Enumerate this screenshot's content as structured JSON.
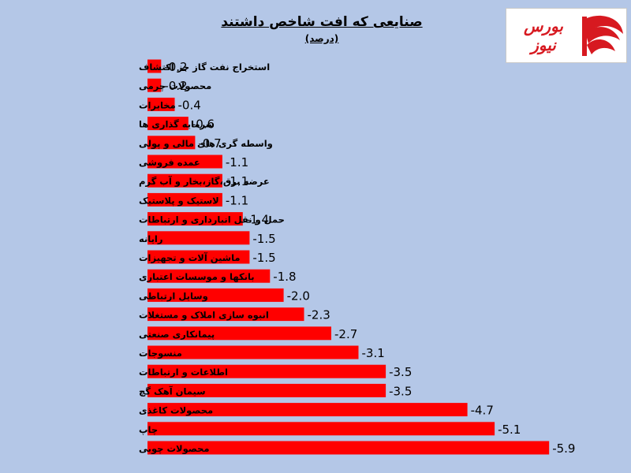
{
  "title": {
    "main": "صنایعی که افت شاخص داشتند",
    "unit": "(درصد)"
  },
  "logo": {
    "text": "بورس نیوز",
    "color": "#d71920"
  },
  "colors": {
    "bar": "#ff0000",
    "background": "#b4c7e7"
  },
  "chart_data": {
    "type": "bar",
    "orientation": "horizontal",
    "categories": [
      "استخراج نفت گاز جز اکتشاف",
      "محصولات چرمی",
      "مخابرات",
      "سرمایه گذاری ها",
      "واسطه گری های مالی و پولی",
      "عمده فروشی",
      "عرضه برق،گاز،بخار و آب گرم",
      "لاستیک و پلاستیک",
      "حمل و نقل انبارداری و ارتباطات",
      "رایانه",
      "ماشین آلات و تجهیزات",
      "بانکها و موسسات اعتباری",
      "وسایل ارتباطی",
      "انبوه سازی املاک و مستغلات",
      "پیمانکاری صنعتی",
      "منسوجات",
      "اطلاعات و ارتباطات",
      "سیمان آهک گچ",
      "محصولات کاغذی",
      "چاپ",
      "محصولات چوبی"
    ],
    "values": [
      -0.2,
      -0.2,
      -0.4,
      -0.6,
      -0.7,
      -1.1,
      -1.1,
      -1.1,
      -1.4,
      -1.5,
      -1.5,
      -1.8,
      -2.0,
      -2.3,
      -2.7,
      -3.1,
      -3.5,
      -3.5,
      -4.7,
      -5.1,
      -5.9
    ],
    "labels": [
      "-0.2",
      "-0.2",
      "-0.4",
      "-0.6",
      "-0.7",
      "-1.1",
      "-1.1",
      "-1.1",
      "-1.4",
      "-1.5",
      "-1.5",
      "-1.8",
      "-2.0",
      "-2.3",
      "-2.7",
      "-3.1",
      "-3.5",
      "-3.5",
      "-4.7",
      "-5.1",
      "-5.9"
    ],
    "title": "صنایعی که افت شاخص داشتند (درصد)",
    "xlabel": "",
    "ylabel": "",
    "grid": false,
    "legend": "none"
  }
}
